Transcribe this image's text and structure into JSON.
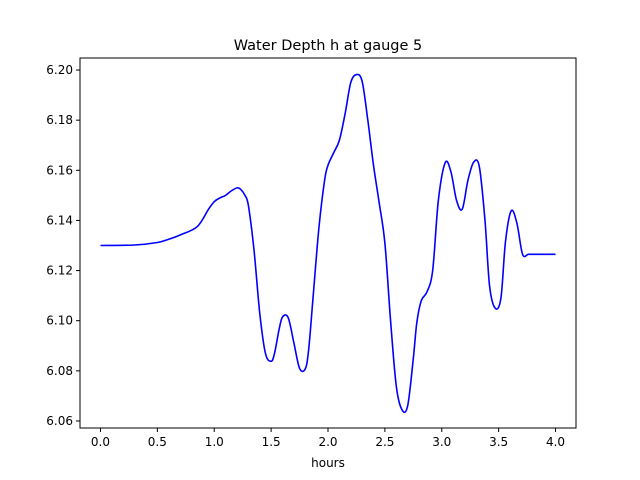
{
  "chart_data": {
    "type": "line",
    "title": "Water Depth h at gauge 5",
    "xlabel": "hours",
    "ylabel": "",
    "xlim": [
      -0.18,
      4.18
    ],
    "ylim": [
      6.0572,
      6.2048
    ],
    "xticks": [
      0.0,
      0.5,
      1.0,
      1.5,
      2.0,
      2.5,
      3.0,
      3.5,
      4.0
    ],
    "xtick_labels": [
      "0.0",
      "0.5",
      "1.0",
      "1.5",
      "2.0",
      "2.5",
      "3.0",
      "3.5",
      "4.0"
    ],
    "yticks": [
      6.06,
      6.08,
      6.1,
      6.12,
      6.14,
      6.16,
      6.18,
      6.2
    ],
    "ytick_labels": [
      "6.06",
      "6.08",
      "6.10",
      "6.12",
      "6.14",
      "6.16",
      "6.18",
      "6.20"
    ],
    "grid": false,
    "series": [
      {
        "color": "#0000ff",
        "x": [
          0.0,
          0.3,
          0.5,
          0.6,
          0.7,
          0.85,
          0.95,
          1.0,
          1.05,
          1.1,
          1.15,
          1.2,
          1.23,
          1.27,
          1.3,
          1.35,
          1.4,
          1.45,
          1.5,
          1.53,
          1.57,
          1.6,
          1.65,
          1.7,
          1.75,
          1.8,
          1.83,
          1.87,
          1.92,
          1.97,
          2.0,
          2.05,
          2.1,
          2.15,
          2.2,
          2.25,
          2.3,
          2.35,
          2.4,
          2.45,
          2.5,
          2.55,
          2.6,
          2.65,
          2.7,
          2.75,
          2.78,
          2.82,
          2.87,
          2.92,
          2.97,
          3.03,
          3.08,
          3.13,
          3.18,
          3.23,
          3.28,
          3.33,
          3.38,
          3.42,
          3.47,
          3.52,
          3.56,
          3.61,
          3.66,
          3.71,
          3.76,
          3.8,
          3.85,
          3.92,
          3.96,
          4.0
        ],
        "y": [
          6.13,
          6.1302,
          6.1312,
          6.1325,
          6.1342,
          6.1375,
          6.1445,
          6.1475,
          6.149,
          6.15,
          6.1518,
          6.153,
          6.1525,
          6.15,
          6.146,
          6.128,
          6.103,
          6.087,
          6.0838,
          6.087,
          6.0965,
          6.1015,
          6.1012,
          6.0912,
          6.081,
          6.0808,
          6.0885,
          6.11,
          6.137,
          6.156,
          6.162,
          6.167,
          6.172,
          6.1825,
          6.195,
          6.1982,
          6.1955,
          6.18,
          6.162,
          6.147,
          6.131,
          6.1,
          6.074,
          6.0645,
          6.066,
          6.085,
          6.099,
          6.108,
          6.1115,
          6.12,
          6.148,
          6.163,
          6.1595,
          6.148,
          6.1445,
          6.156,
          6.1632,
          6.1615,
          6.14,
          6.114,
          6.105,
          6.109,
          6.1315,
          6.1438,
          6.139,
          6.1265,
          6.1265,
          6.1265,
          6.1265,
          6.1265,
          6.1265,
          6.1265
        ]
      }
    ]
  }
}
